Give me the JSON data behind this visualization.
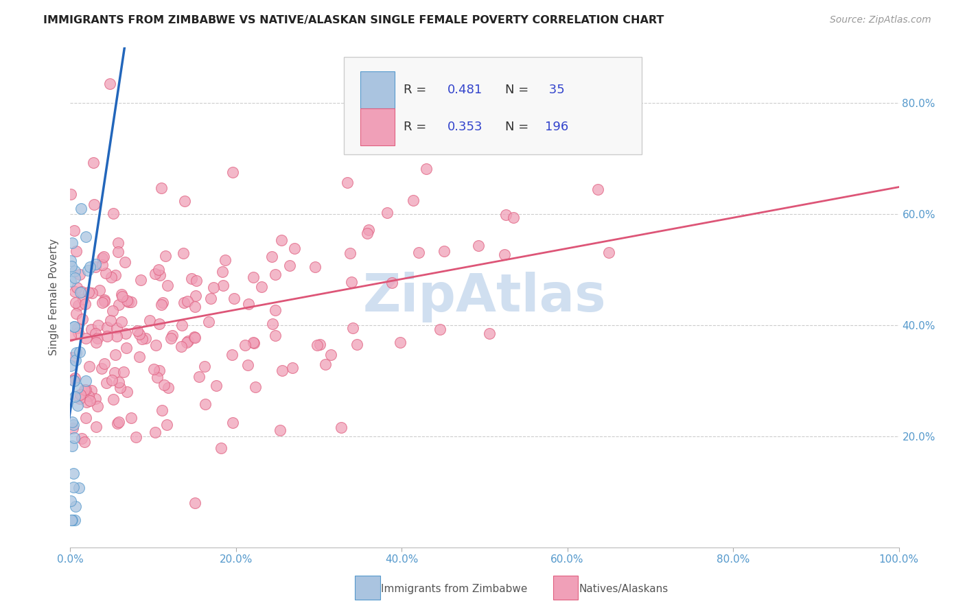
{
  "title": "IMMIGRANTS FROM ZIMBABWE VS NATIVE/ALASKAN SINGLE FEMALE POVERTY CORRELATION CHART",
  "source": "Source: ZipAtlas.com",
  "ylabel": "Single Female Poverty",
  "r_blue": 0.481,
  "n_blue": 35,
  "r_pink": 0.353,
  "n_pink": 196,
  "blue_fill": "#aac4e0",
  "blue_edge": "#5599cc",
  "pink_fill": "#f0a0b8",
  "pink_edge": "#e06080",
  "blue_line_color": "#2266bb",
  "pink_line_color": "#dd5577",
  "watermark_color": "#d0dff0",
  "title_color": "#222222",
  "source_color": "#999999",
  "legend_value_color": "#3344cc",
  "axis_tick_color": "#5599cc",
  "grid_color": "#cccccc",
  "background_color": "#ffffff",
  "xlim": [
    0.0,
    1.0
  ],
  "ylim": [
    0.0,
    0.9
  ],
  "xtick_vals": [
    0.0,
    0.2,
    0.4,
    0.6,
    0.8,
    1.0
  ],
  "xtick_labels": [
    "0.0%",
    "20.0%",
    "40.0%",
    "60.0%",
    "80.0%",
    "100.0%"
  ],
  "ytick_vals": [
    0.2,
    0.4,
    0.6,
    0.8
  ],
  "ytick_labels": [
    "20.0%",
    "40.0%",
    "60.0%",
    "80.0%"
  ]
}
